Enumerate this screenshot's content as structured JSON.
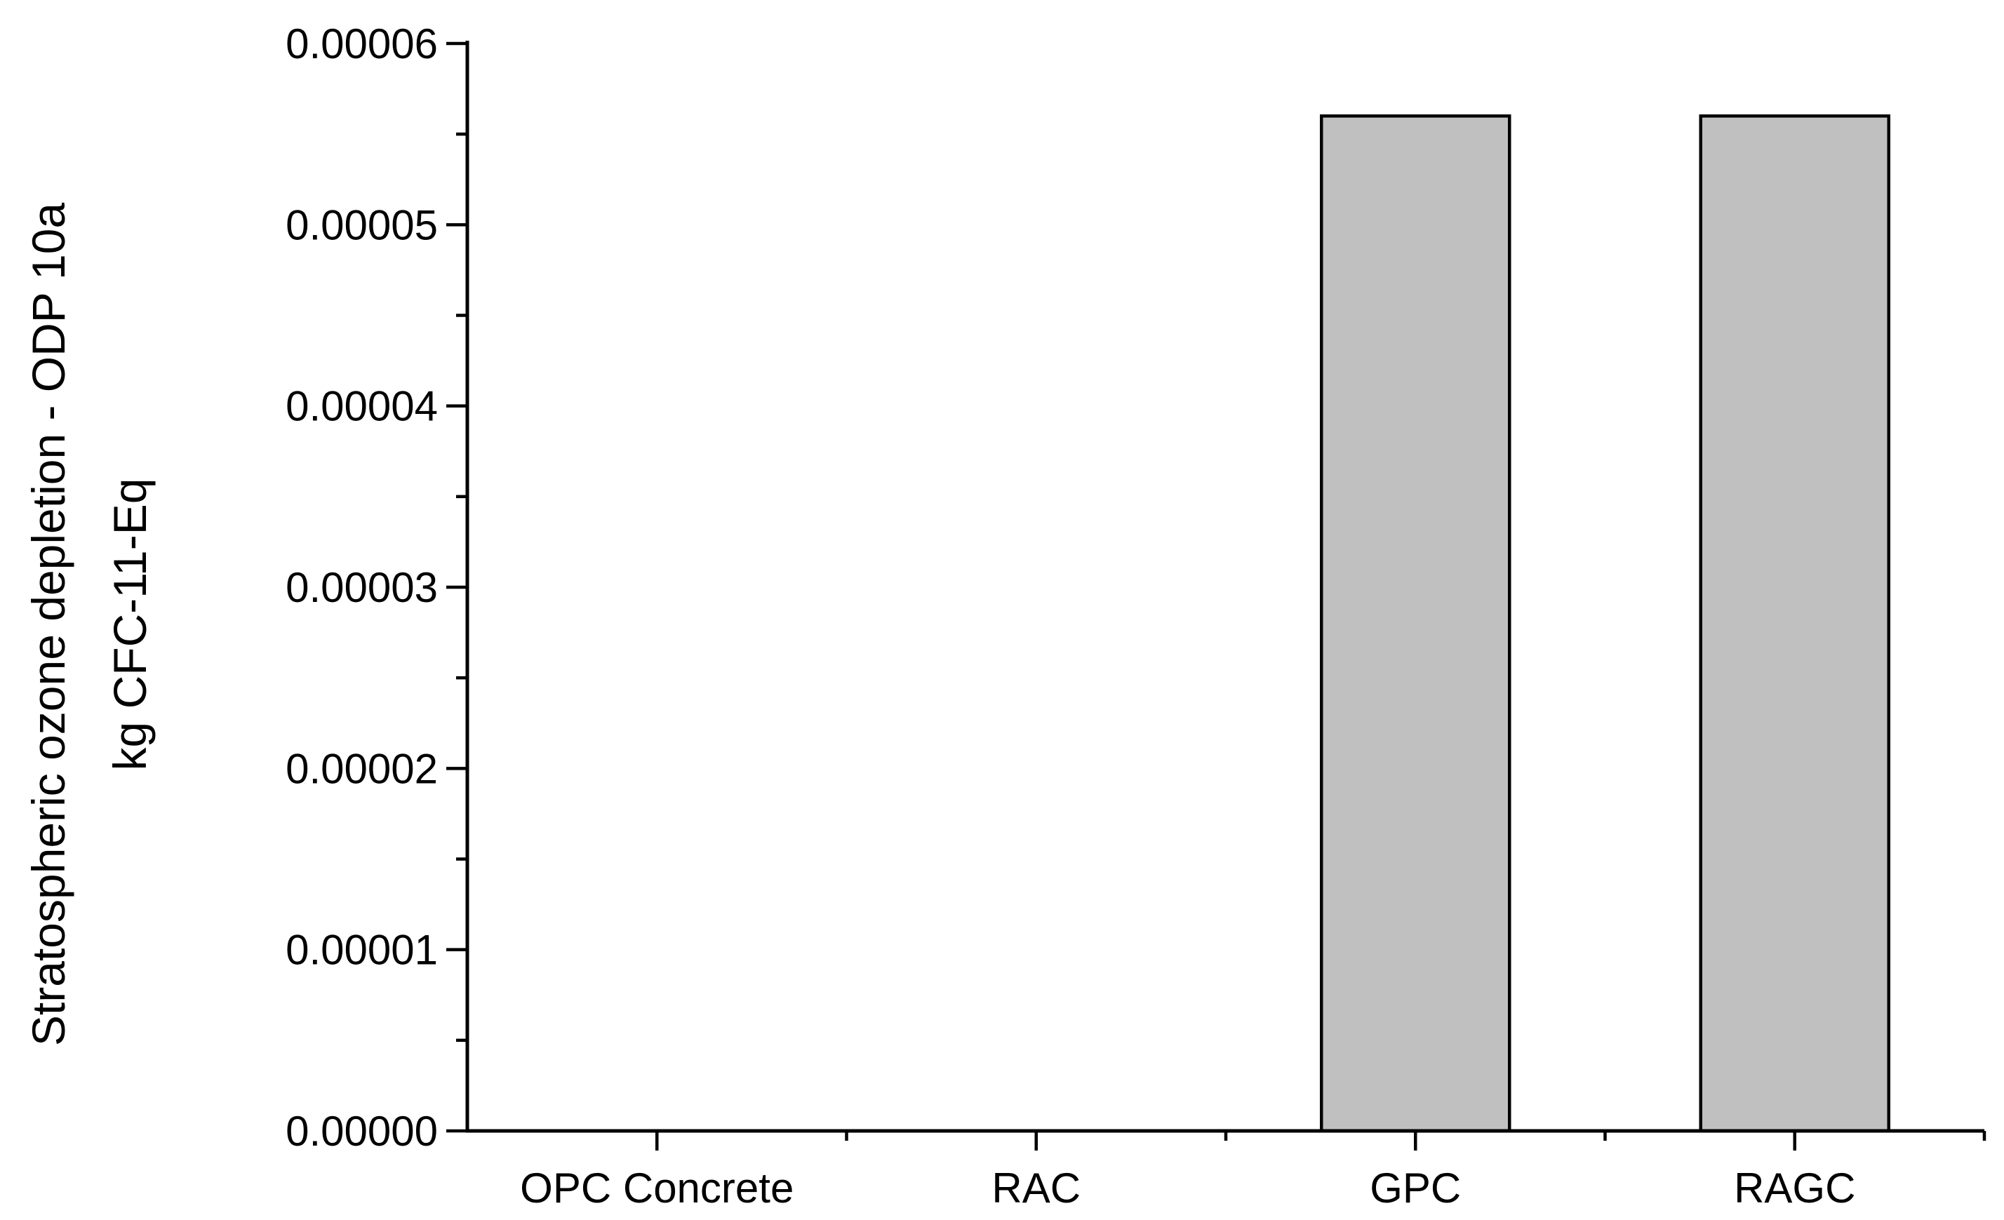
{
  "chart_data": {
    "type": "bar",
    "categories": [
      "OPC Concrete",
      "RAC",
      "GPC",
      "RAGC"
    ],
    "values": [
      0,
      0,
      5.6e-05,
      5.6e-05
    ],
    "title": "",
    "xlabel": "",
    "ylabel_lines": [
      "Stratospheric ozone depletion - ODP 10a",
      "kg CFC-11-Eq"
    ],
    "ylim": [
      0,
      6e-05
    ],
    "y_ticks": [
      "0.00000",
      "0.00001",
      "0.00002",
      "0.00003",
      "0.00004",
      "0.00005",
      "0.00006"
    ],
    "bar_color": "#c0c0c0",
    "grid": false,
    "legend": "none"
  }
}
